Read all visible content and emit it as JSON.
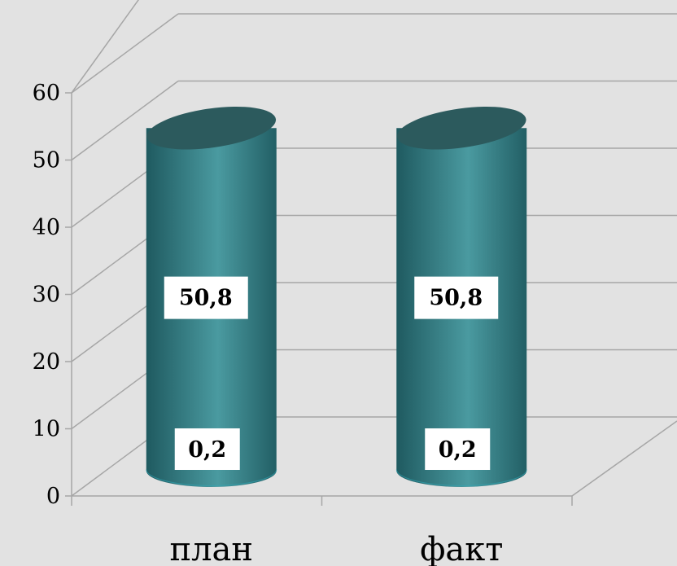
{
  "chart_data": {
    "type": "bar",
    "style": "3d-cylinder",
    "categories": [
      "план",
      "факт"
    ],
    "series": [
      {
        "values": [
          0.2,
          0.2
        ],
        "labels": [
          "0,2",
          "0,2"
        ],
        "color": "#31a9b8"
      },
      {
        "values": [
          50.8,
          50.8
        ],
        "labels": [
          "50,8",
          "50,8"
        ],
        "color": "#2e7b82"
      }
    ],
    "yticks": [
      "0",
      "10",
      "20",
      "30",
      "40",
      "50",
      "60"
    ],
    "ylim": [
      0,
      60
    ],
    "grid": true,
    "legend": "none",
    "colors": {
      "background": "#e2e2e2",
      "bar": "#2e7b82",
      "bar_top": "#2c5a5d",
      "grid": "#a6a6a6",
      "label_box": "#ffffff"
    }
  }
}
